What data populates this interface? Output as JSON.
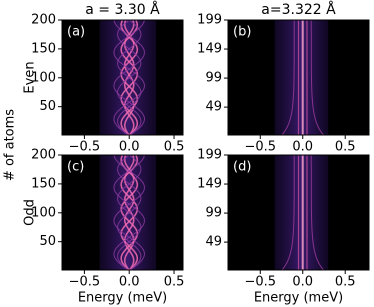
{
  "supylabel": "# of atoms",
  "chart_data": [
    {
      "type": "heatmap",
      "title": "a = 3.30 Å",
      "panel_label": "(a)",
      "ylabel": "Even",
      "xlim": [
        -0.75,
        0.6
      ],
      "xticks": [
        {
          "value": -0.5,
          "label": "−0.5"
        },
        {
          "value": 0,
          "label": "0.0"
        },
        0.5
      ],
      "ylim": [
        1,
        200
      ],
      "yticks": [
        50,
        100,
        150,
        200
      ]
    },
    {
      "type": "heatmap",
      "title": "a=3.322 Å",
      "panel_label": "(b)",
      "xlim": [
        -0.88,
        0.78
      ],
      "xticks": [
        {
          "value": -0.5,
          "label": "−0.5"
        },
        {
          "value": 0,
          "label": "0.0"
        },
        0.5
      ],
      "ylim": [
        1,
        199
      ],
      "yticks": [
        49,
        99,
        149,
        199
      ]
    },
    {
      "type": "heatmap",
      "panel_label": "(c)",
      "ylabel": "Odd",
      "xlabel": "Energy (meV)",
      "xlim": [
        -0.75,
        0.6
      ],
      "xticks": [
        {
          "value": -0.5,
          "label": "−0.5"
        },
        {
          "value": 0,
          "label": "0.0"
        },
        0.5
      ],
      "ylim": [
        1,
        200
      ],
      "yticks": [
        50,
        100,
        150,
        200
      ]
    },
    {
      "type": "heatmap",
      "panel_label": "(d)",
      "xlabel": "Energy (meV)",
      "xlim": [
        -0.88,
        0.78
      ],
      "xticks": [
        {
          "value": -0.5,
          "label": "−0.5"
        },
        {
          "value": 0,
          "label": "0.0"
        },
        0.5
      ],
      "ylim": [
        1,
        199
      ],
      "yticks": [
        49,
        99,
        149,
        199
      ]
    }
  ]
}
